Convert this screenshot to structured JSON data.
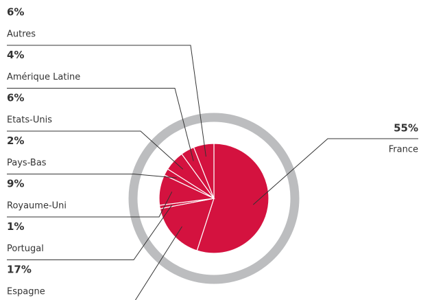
{
  "chart_data": {
    "type": "pie",
    "categories": [
      "France",
      "Espagne",
      "Portugal",
      "Royaume-Uni",
      "Pays-Bas",
      "Etats-Unis",
      "Amérique Latine",
      "Autres"
    ],
    "values": [
      55,
      17,
      1,
      9,
      2,
      6,
      4,
      6
    ],
    "value_labels": [
      "55%",
      "17%",
      "1%",
      "9%",
      "2%",
      "6%",
      "4%",
      "6%"
    ],
    "color": "#d4123f",
    "ring_color": "#bcbdbf"
  }
}
